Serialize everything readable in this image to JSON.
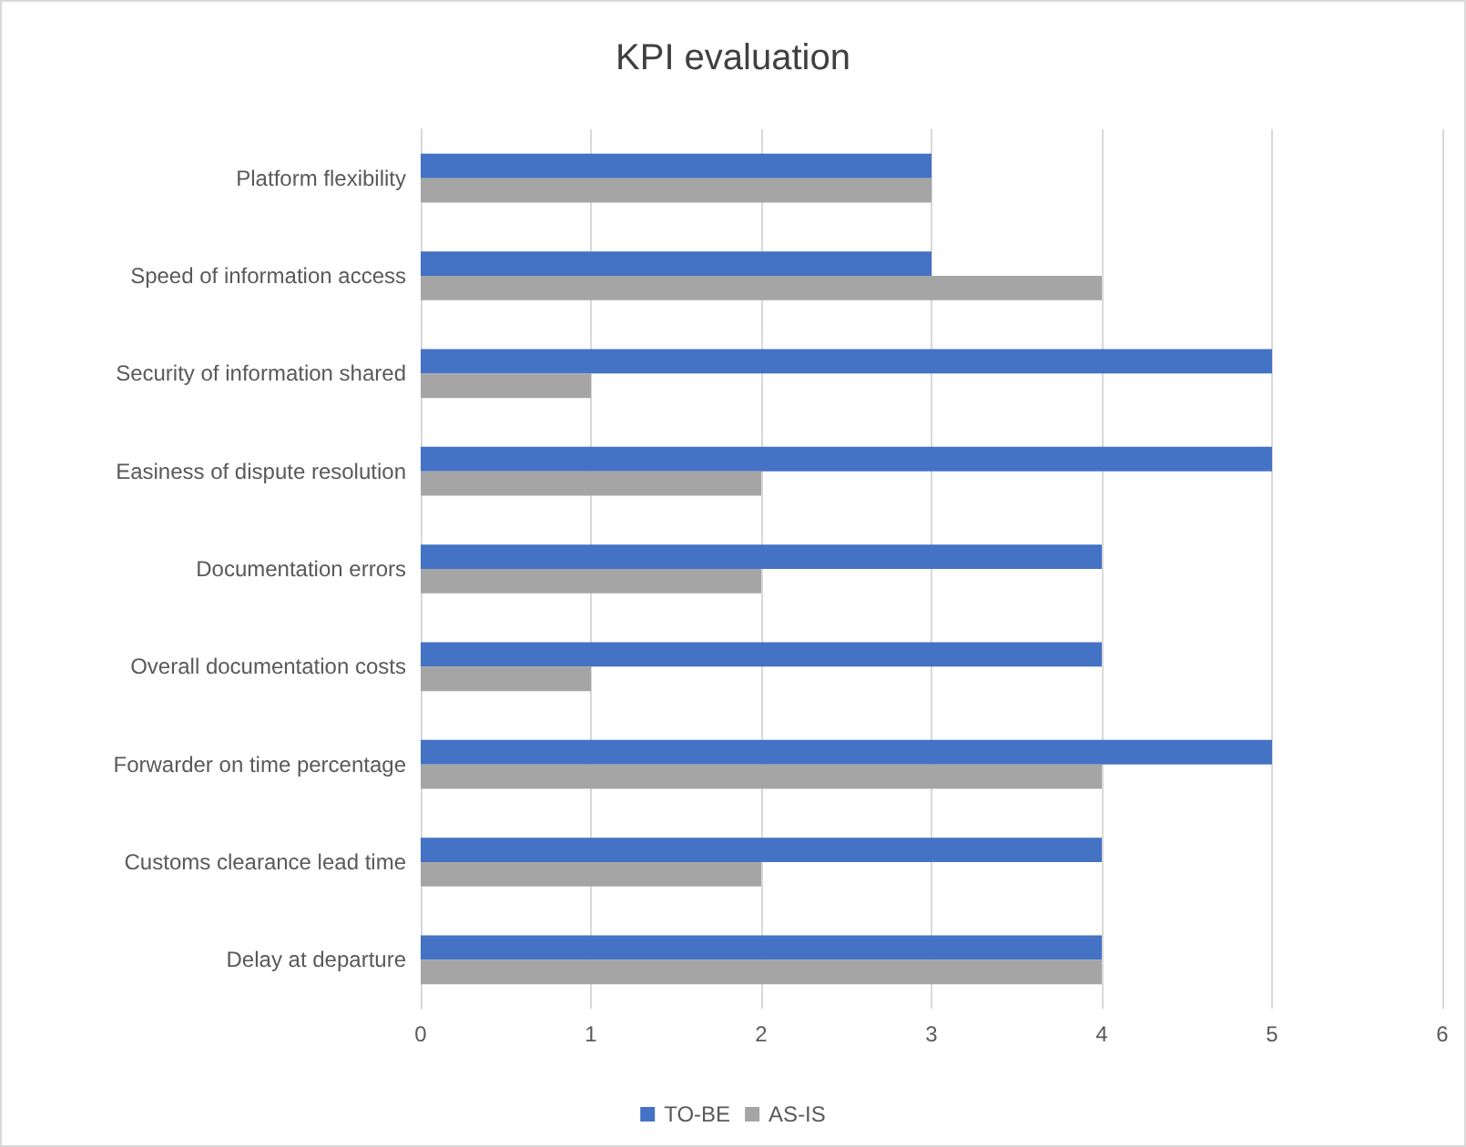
{
  "chart_data": {
    "type": "bar",
    "orientation": "horizontal",
    "title": "KPI evaluation",
    "categories": [
      "Platform flexibility",
      "Speed of information access",
      "Security of information shared",
      "Easiness of dispute resolution",
      "Documentation errors",
      "Overall documentation costs",
      "Forwarder on time percentage",
      "Customs clearance lead time",
      "Delay at departure"
    ],
    "series": [
      {
        "name": "TO-BE",
        "color": "#4472c4",
        "values": [
          3,
          3,
          5,
          5,
          4,
          4,
          5,
          4,
          4
        ]
      },
      {
        "name": "AS-IS",
        "color": "#a5a5a5",
        "values": [
          3,
          4,
          1,
          2,
          2,
          1,
          4,
          2,
          4
        ]
      }
    ],
    "xlim": [
      0,
      6
    ],
    "xticks": [
      0,
      1,
      2,
      3,
      4,
      5,
      6
    ],
    "grid": "x",
    "legend": "bottom"
  }
}
